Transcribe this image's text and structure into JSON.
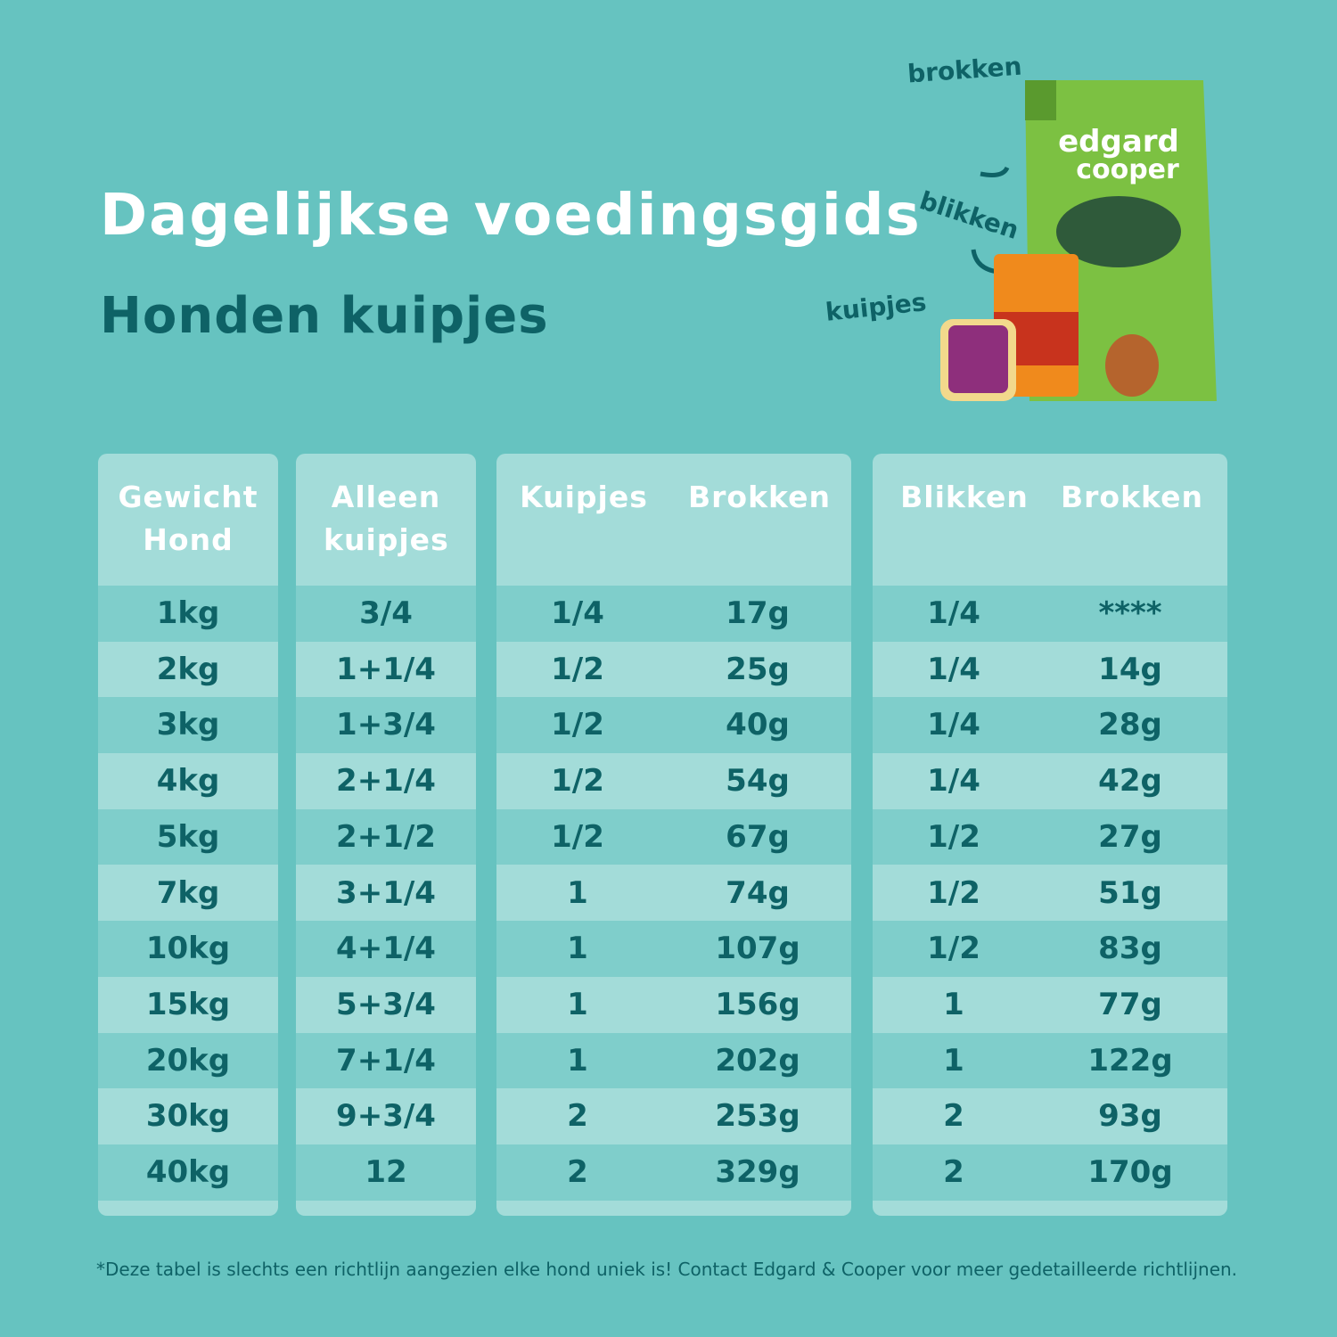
{
  "header": {
    "title": "Dagelijkse voedingsgids",
    "subtitle": "Honden kuipjes"
  },
  "product_labels": [
    "brokken",
    "blikken",
    "kuipjes"
  ],
  "table": {
    "columns": [
      "Gewicht Hond",
      "Alleen kuipjes",
      "Kuipjes",
      "Brokken",
      "Blikken",
      "Brokken"
    ],
    "rows": [
      [
        "1kg",
        "3/4",
        "1/4",
        "17g",
        "1/4",
        "****"
      ],
      [
        "2kg",
        "1+1/4",
        "1/2",
        "25g",
        "1/4",
        "14g"
      ],
      [
        "3kg",
        "1+3/4",
        "1/2",
        "40g",
        "1/4",
        "28g"
      ],
      [
        "4kg",
        "2+1/4",
        "1/2",
        "54g",
        "1/4",
        "42g"
      ],
      [
        "5kg",
        "2+1/2",
        "1/2",
        "67g",
        "1/2",
        "27g"
      ],
      [
        "7kg",
        "3+1/4",
        "1",
        "74g",
        "1/2",
        "51g"
      ],
      [
        "10kg",
        "4+1/4",
        "1",
        "107g",
        "1/2",
        "83g"
      ],
      [
        "15kg",
        "5+3/4",
        "1",
        "156g",
        "1",
        "77g"
      ],
      [
        "20kg",
        "7+1/4",
        "1",
        "202g",
        "1",
        "122g"
      ],
      [
        "30kg",
        "9+3/4",
        "2",
        "253g",
        "2",
        "93g"
      ],
      [
        "40kg",
        "12",
        "2",
        "329g",
        "2",
        "170g"
      ]
    ]
  },
  "footnote": "*Deze tabel is slechts een richtlijn aangezien elke hond uniek is! Contact Edgard & Cooper voor meer gedetailleerde richtlijnen."
}
